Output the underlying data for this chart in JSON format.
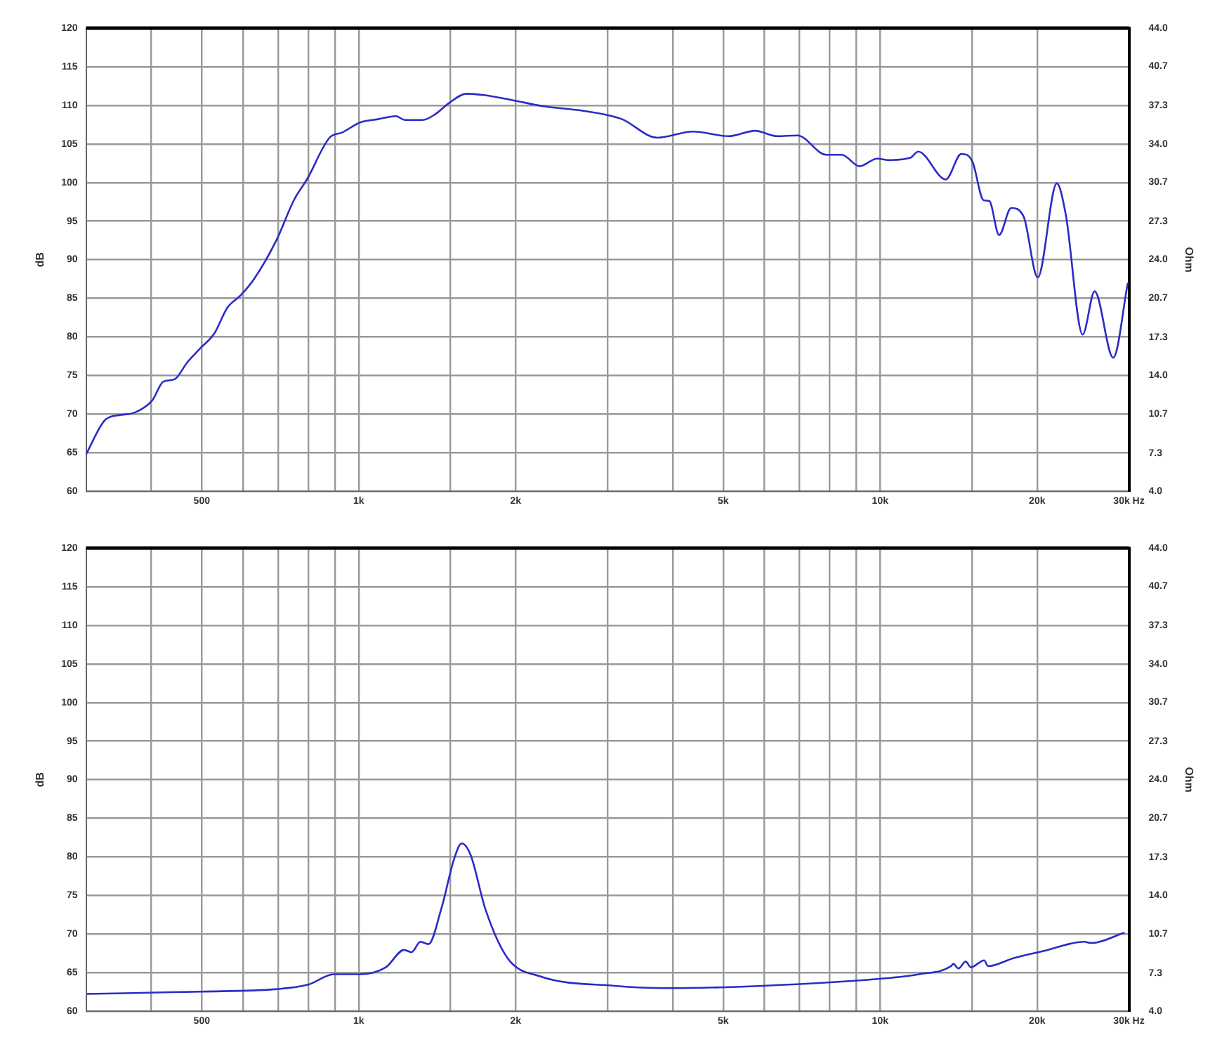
{
  "chart_data": [
    {
      "type": "line",
      "ylabel": "dB",
      "y2label": "Ohm",
      "log": "x",
      "grid": true,
      "legend": false,
      "marker": "none",
      "line_style": "solid",
      "xlim": [
        300,
        30000
      ],
      "xticks": [
        {
          "value": 400,
          "label": null
        },
        {
          "value": 500,
          "label": "500"
        },
        {
          "value": 600,
          "label": null
        },
        {
          "value": 700,
          "label": null
        },
        {
          "value": 800,
          "label": null
        },
        {
          "value": 900,
          "label": null
        },
        {
          "value": 1000,
          "label": "1k"
        },
        {
          "value": 1500,
          "label": null
        },
        {
          "value": 2000,
          "label": "2k"
        },
        {
          "value": 3000,
          "label": null
        },
        {
          "value": 4000,
          "label": null
        },
        {
          "value": 5000,
          "label": "5k"
        },
        {
          "value": 6000,
          "label": null
        },
        {
          "value": 7000,
          "label": null
        },
        {
          "value": 8000,
          "label": null
        },
        {
          "value": 9000,
          "label": null
        },
        {
          "value": 10000,
          "label": "10k"
        },
        {
          "value": 15000,
          "label": null
        },
        {
          "value": 20000,
          "label": "20k"
        },
        {
          "value": 30000,
          "label": "30k Hz"
        }
      ],
      "ylim": [
        60,
        120
      ],
      "yticks": [
        60,
        65,
        70,
        75,
        80,
        85,
        90,
        95,
        100,
        105,
        110,
        115,
        120
      ],
      "y2lim": [
        4,
        44
      ],
      "y2ticks": [
        {
          "value": 4,
          "label": "4.0"
        },
        7.3,
        10.7,
        {
          "value": 14,
          "label": "14.0"
        },
        17.3,
        20.7,
        {
          "value": 24,
          "label": "24.0"
        },
        27.3,
        30.7,
        {
          "value": 34,
          "label": "34.0"
        },
        37.3,
        40.7,
        {
          "value": 44,
          "label": "44.0"
        }
      ],
      "series": [
        {
          "color": "#2b2bc8",
          "x": [
            300,
            327,
            350,
            372,
            402,
            422,
            443,
            469,
            498,
            528,
            560,
            594,
            630,
            695,
            751,
            797,
            879,
            931,
            1008,
            1090,
            1178,
            1227,
            1326,
            1406,
            1490,
            1611,
            1744,
            1962,
            2250,
            2684,
            3020,
            3200,
            3741,
            4375,
            5117,
            5757,
            6350,
            6937,
            7878,
            8441,
            9125,
            9868,
            10360,
            11420,
            11830,
            13360,
            14310,
            15030,
            15790,
            16190,
            16910,
            17830,
            18840,
            20050,
            21820,
            22690,
            24450,
            25780,
            27990,
            29850
          ],
          "values": [
            64.8,
            69.3,
            69.9,
            70.2,
            71.8,
            74.2,
            74.5,
            76.7,
            78.6,
            80.4,
            83.8,
            85.4,
            87.5,
            92.5,
            97.7,
            100.5,
            105.8,
            106.5,
            107.8,
            108.2,
            108.6,
            108.1,
            108.1,
            108.9,
            110.3,
            111.5,
            111.3,
            110.7,
            109.9,
            109.3,
            108.7,
            108.2,
            105.8,
            106.6,
            106.0,
            106.7,
            106.0,
            106.1,
            103.6,
            103.6,
            102.1,
            103.1,
            102.9,
            103.2,
            104.0,
            100.4,
            103.7,
            102.7,
            97.7,
            97.6,
            93.2,
            96.7,
            95.6,
            87.7,
            99.9,
            95.9,
            80.3,
            85.9,
            77.3,
            87.0
          ]
        }
      ]
    },
    {
      "type": "line",
      "ylabel": "dB",
      "y2label": "Ohm",
      "log": "x",
      "grid": true,
      "legend": false,
      "marker": "none",
      "line_style": "solid",
      "xlim": [
        300,
        30000
      ],
      "xticks": [
        {
          "value": 400,
          "label": null
        },
        {
          "value": 500,
          "label": "500"
        },
        {
          "value": 600,
          "label": null
        },
        {
          "value": 700,
          "label": null
        },
        {
          "value": 800,
          "label": null
        },
        {
          "value": 900,
          "label": null
        },
        {
          "value": 1000,
          "label": "1k"
        },
        {
          "value": 1500,
          "label": null
        },
        {
          "value": 2000,
          "label": "2k"
        },
        {
          "value": 3000,
          "label": null
        },
        {
          "value": 4000,
          "label": null
        },
        {
          "value": 5000,
          "label": "5k"
        },
        {
          "value": 6000,
          "label": null
        },
        {
          "value": 7000,
          "label": null
        },
        {
          "value": 8000,
          "label": null
        },
        {
          "value": 9000,
          "label": null
        },
        {
          "value": 10000,
          "label": "10k"
        },
        {
          "value": 15000,
          "label": null
        },
        {
          "value": 20000,
          "label": "20k"
        },
        {
          "value": 30000,
          "label": "30k Hz"
        }
      ],
      "ylim": [
        60,
        120
      ],
      "yticks": [
        60,
        65,
        70,
        75,
        80,
        85,
        90,
        95,
        100,
        105,
        110,
        115,
        120
      ],
      "y2lim": [
        4,
        44
      ],
      "y2ticks": [
        {
          "value": 4,
          "label": "4.0"
        },
        7.3,
        10.7,
        {
          "value": 14,
          "label": "14.0"
        },
        17.3,
        20.7,
        {
          "value": 24,
          "label": "24.0"
        },
        27.3,
        30.7,
        {
          "value": 34,
          "label": "34.0"
        },
        37.3,
        40.7,
        {
          "value": 44,
          "label": "44.0"
        }
      ],
      "series": [
        {
          "color": "#2b2bc8",
          "axis": "y2",
          "x": [
            301,
            498,
            690,
            800,
            896,
            1005,
            1127,
            1222,
            1263,
            1313,
            1361,
            1439,
            1525,
            1575,
            1639,
            1750,
            1929,
            2233,
            3095,
            3892,
            5953,
            9950,
            11880,
            13680,
            13810,
            14130,
            14590,
            14920,
            15830,
            16100,
            18050,
            20550,
            24600,
            25420,
            29430
          ],
          "values": [
            5.5,
            5.7,
            5.9,
            6.3,
            7.2,
            7.2,
            7.8,
            9.3,
            9.1,
            10.0,
            9.8,
            12.8,
            17.2,
            18.5,
            17.5,
            12.8,
            8.6,
            7.0,
            6.2,
            6.0,
            6.2,
            6.8,
            7.2,
            7.9,
            8.1,
            7.7,
            8.3,
            7.8,
            8.4,
            7.9,
            8.6,
            9.2,
            10.0,
            9.9,
            10.8
          ]
        }
      ]
    }
  ]
}
